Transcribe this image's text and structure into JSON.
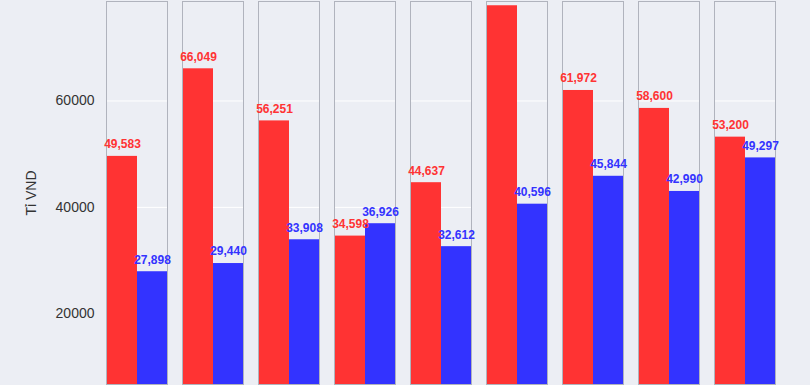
{
  "chart_data": {
    "type": "bar",
    "y_label": "Tỉ VND",
    "categories": [
      null,
      null,
      null,
      null,
      null,
      null,
      null,
      null,
      null
    ],
    "series": [
      {
        "color": "#ff3333",
        "values": [
          49583,
          66049,
          56251,
          34598,
          44637,
          77900,
          61972,
          58600,
          53200
        ],
        "value_labels": [
          "49,583",
          "66,049",
          "56,251",
          "34,598",
          "44,637",
          null,
          "61,972",
          "58,600",
          "53,200"
        ]
      },
      {
        "color": "#3333ff",
        "values": [
          27898,
          29440,
          33908,
          36926,
          32612,
          40596,
          45844,
          42990,
          49297
        ],
        "value_labels": [
          "27,898",
          "29,440",
          "33,908",
          "36,926",
          "32,612",
          "40,596",
          "45,844",
          "42,990",
          "49,297"
        ]
      }
    ],
    "ylim": [
      6700,
      78700
    ],
    "yticks": [
      20000,
      40000,
      60000
    ],
    "grid": true,
    "data_labels": true
  }
}
